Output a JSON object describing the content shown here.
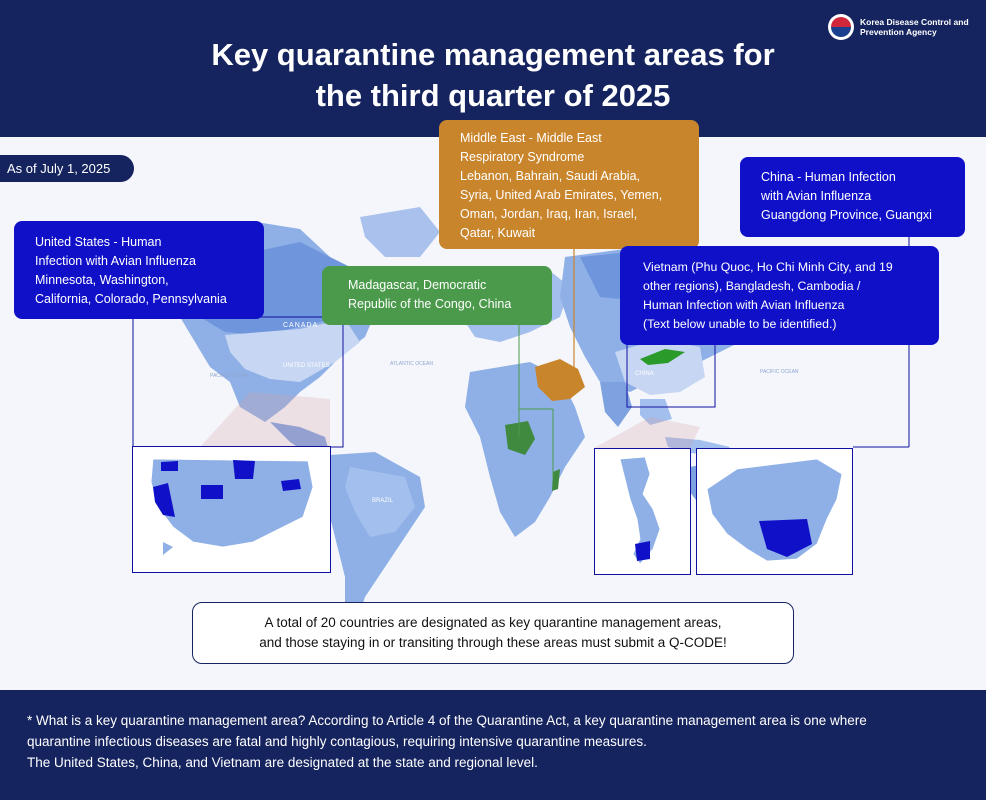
{
  "header": {
    "title_line1": "Key quarantine management areas for",
    "title_line2": "the third quarter of 2025",
    "agency_line1": "Korea Disease Control and",
    "agency_line2": "Prevention Agency"
  },
  "as_of": "As of July 1, 2025",
  "callouts": {
    "us": {
      "line1": "United States - Human",
      "line2": "Infection with Avian Influenza",
      "line3": "Minnesota, Washington,",
      "line4": "California, Colorado, Pennsylvania"
    },
    "middle_east": {
      "line1": "Middle East - Middle East",
      "line2": "Respiratory Syndrome",
      "line3": "Lebanon, Bahrain, Saudi Arabia,",
      "line4": "Syria, United Arab Emirates, Yemen,",
      "line5": "Oman, Jordan, Iraq, Iran, Israel,",
      "line6": "Qatar, Kuwait"
    },
    "china": {
      "line1": "China - Human Infection",
      "line2": "with Avian Influenza",
      "line3": "Guangdong Province, Guangxi"
    },
    "africa": {
      "line1": "Madagascar, Democratic",
      "line2": "Republic of the Congo, China"
    },
    "vietnam": {
      "line1": "Vietnam (Phu Quoc, Ho Chi Minh City, and 19",
      "line2": "other regions), Bangladesh, Cambodia /",
      "line3": "Human Infection with Avian Influenza",
      "line4": "(Text below unable to be identified.)"
    }
  },
  "map_labels": {
    "canada": "CANADA",
    "united_states": "UNITED STATES",
    "brazil": "BRAZIL",
    "china": "CHINA",
    "atlantic_ocean": "ATLANTIC OCEAN",
    "pacific_ocean_left": "PACIFIC OCEAN",
    "pacific_ocean_right": "PACIFIC OCEAN"
  },
  "notice": {
    "line1": "A total of 20 countries are designated as key quarantine management areas,",
    "line2": "and those staying in or transiting through these areas must submit a Q-CODE!"
  },
  "footer": {
    "line1": "* What is a key quarantine management area? According to Article 4 of the Quarantine Act, a key quarantine management area is one where",
    "line2": "quarantine infectious diseases are fatal and highly contagious, requiring intensive quarantine measures.",
    "line3": "The United States, China, and Vietnam are designated at the state and regional level."
  },
  "colors": {
    "navy": "#15245f",
    "highlight_blue": "#1010c8",
    "middle_east": "#c9852c",
    "africa": "#4b9a4b",
    "land": "#8fb0e6"
  }
}
